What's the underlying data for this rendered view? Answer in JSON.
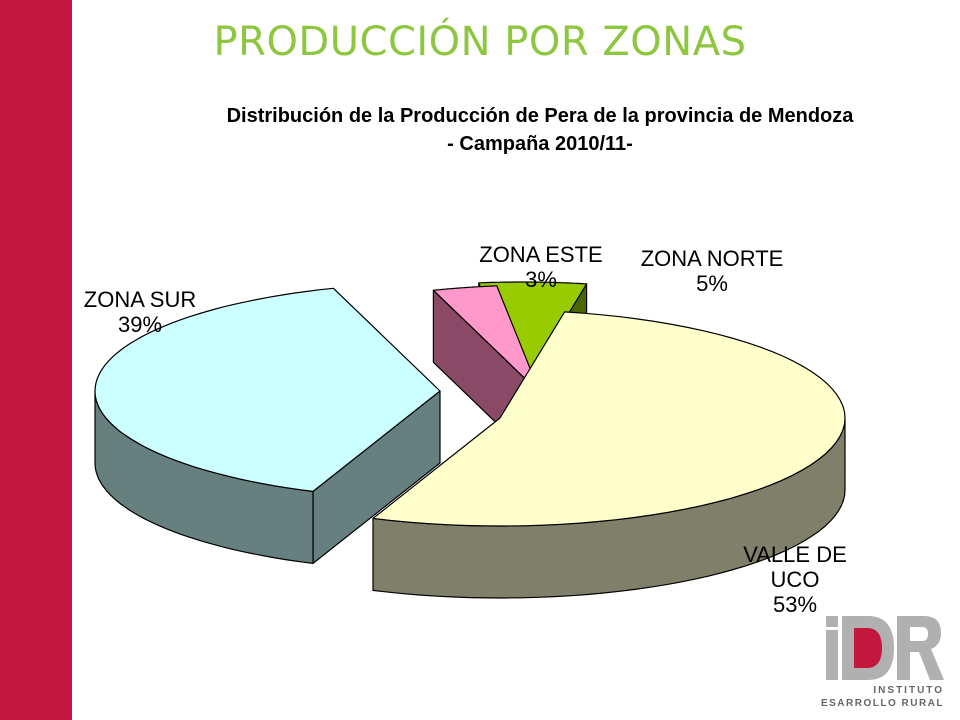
{
  "page": {
    "heading": "PRODUCCIÓN POR ZONAS",
    "accent_color": "#c41740",
    "heading_color": "#8dc63f"
  },
  "logo": {
    "letters": "iDR",
    "line1": "INSTITUTO",
    "line2": "DESARROLLO RURAL",
    "letters_color": "#b0b0b0",
    "accent_color": "#c41740"
  },
  "chart_data": {
    "type": "pie",
    "style": "3d-exploded",
    "title_lines": [
      "Distribución de la Producción de Pera de la provincia de Mendoza",
      "- Campaña 2010/11-"
    ],
    "legend": "none",
    "slices": [
      {
        "label_lines": [
          "ZONA ESTE"
        ],
        "percent_label": "3%",
        "value": 3,
        "top_color": "#ff99cc",
        "side_color": "#8a4a66"
      },
      {
        "label_lines": [
          "ZONA NORTE"
        ],
        "percent_label": "5%",
        "value": 5,
        "top_color": "#99cc00",
        "side_color": "#4b6600"
      },
      {
        "label_lines": [
          "VALLE DE",
          "UCO"
        ],
        "percent_label": "53%",
        "value": 53,
        "top_color": "#ffffcc",
        "side_color": "#80806a"
      },
      {
        "label_lines": [
          "ZONA SUR"
        ],
        "percent_label": "39%",
        "value": 39,
        "top_color": "#ccffff",
        "side_color": "#668080"
      }
    ]
  }
}
